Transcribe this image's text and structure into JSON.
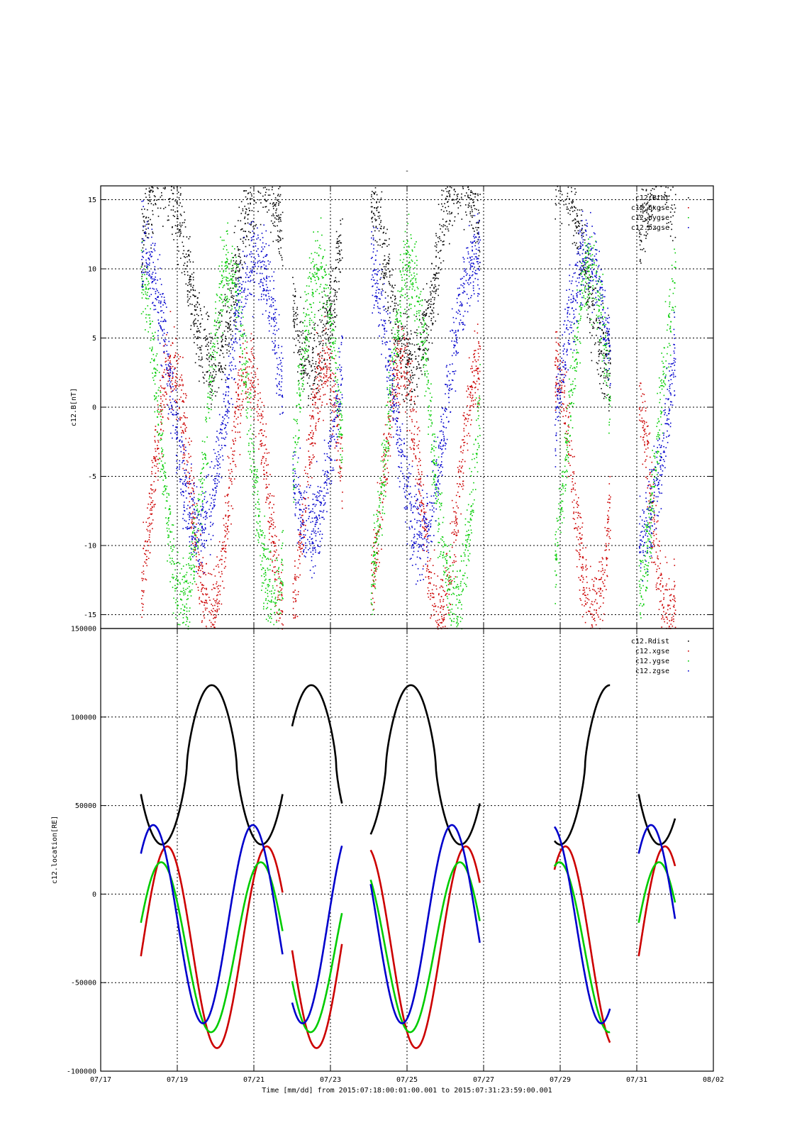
{
  "figure_title": "-",
  "x_caption": "Time [mm/dd]  from 2015:07:18:00:01:00.001  to  2015:07:31:23:59:00.001",
  "colors": {
    "black": "#000000",
    "red": "#cc0000",
    "green": "#00cc00",
    "blue": "#0000cc"
  },
  "chart_data": [
    {
      "type": "scatter",
      "ylabel": "c12.B[nT]",
      "ylim": [
        -16,
        16
      ],
      "xlim_days": [
        0,
        16
      ],
      "x_ticks": [],
      "y_ticks": [
        "15",
        "10",
        "5",
        "0",
        "-5",
        "-10",
        "-15"
      ],
      "y_tick_values": [
        15,
        10,
        5,
        0,
        -5,
        -10,
        -15
      ],
      "grid": true,
      "legend_position": "top-right",
      "series": [
        {
          "name": "c12.Btot",
          "color": "black"
        },
        {
          "name": "c12.bxgse",
          "color": "red"
        },
        {
          "name": "c12.bygse",
          "color": "green"
        },
        {
          "name": "c12.bzgse",
          "color": "blue"
        }
      ]
    },
    {
      "type": "line",
      "ylabel": "c12.location[RE]",
      "ylim": [
        -100000,
        150000
      ],
      "xlim_days": [
        0,
        16
      ],
      "x_ticks": [
        "07/17",
        "07/19",
        "07/21",
        "07/23",
        "07/25",
        "07/27",
        "07/29",
        "07/31",
        "08/02"
      ],
      "x_tick_days": [
        0,
        2,
        4,
        6,
        8,
        10,
        12,
        14,
        16
      ],
      "y_ticks": [
        "150000",
        "100000",
        "50000",
        "0",
        "-50000",
        "-100000"
      ],
      "y_tick_values": [
        150000,
        100000,
        50000,
        0,
        -50000,
        -100000
      ],
      "grid": true,
      "legend_position": "top-right",
      "orbit_period_days": 2.6,
      "perigee_day": 1.6,
      "segments_days": [
        [
          1.05,
          2.1
        ],
        [
          2.1,
          4.75
        ],
        [
          5.0,
          6.3
        ],
        [
          7.05,
          9.9
        ],
        [
          11.85,
          13.3
        ],
        [
          14.05,
          15.0
        ]
      ],
      "series": [
        {
          "name": "c12.Rdist",
          "color": "black",
          "mean": 73000,
          "amp": 45000
        },
        {
          "name": "c12.xgse",
          "color": "red",
          "mean": -30000,
          "amp": 58000
        },
        {
          "name": "c12.ygse",
          "color": "green",
          "mean": -30000,
          "amp": 48000
        },
        {
          "name": "c12.zgse",
          "color": "blue",
          "mean": -17000,
          "amp": 56000
        }
      ]
    }
  ]
}
